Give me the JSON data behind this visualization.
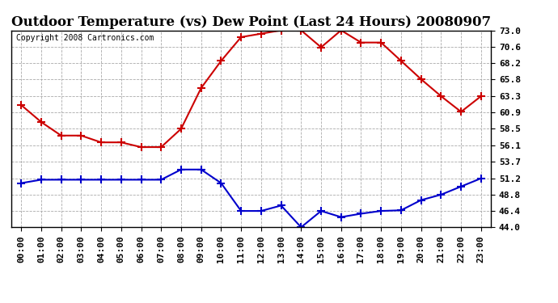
{
  "title": "Outdoor Temperature (vs) Dew Point (Last 24 Hours) 20080907",
  "copyright": "Copyright 2008 Cartronics.com",
  "hours": [
    "00:00",
    "01:00",
    "02:00",
    "03:00",
    "04:00",
    "05:00",
    "06:00",
    "07:00",
    "08:00",
    "09:00",
    "10:00",
    "11:00",
    "12:00",
    "13:00",
    "14:00",
    "15:00",
    "16:00",
    "17:00",
    "18:00",
    "19:00",
    "20:00",
    "21:00",
    "22:00",
    "23:00"
  ],
  "temp": [
    62.0,
    59.5,
    57.5,
    57.5,
    56.5,
    56.5,
    55.8,
    55.8,
    58.5,
    64.5,
    68.5,
    72.0,
    72.5,
    73.0,
    73.0,
    70.5,
    73.0,
    71.2,
    71.2,
    68.5,
    65.8,
    63.3,
    61.0,
    63.3
  ],
  "dew": [
    50.5,
    51.0,
    51.0,
    51.0,
    51.0,
    51.0,
    51.0,
    51.0,
    52.5,
    52.5,
    50.5,
    46.4,
    46.4,
    47.2,
    44.0,
    46.4,
    45.5,
    46.0,
    46.4,
    46.5,
    48.0,
    48.8,
    50.0,
    51.2
  ],
  "ylim": [
    44.0,
    73.0
  ],
  "yticks": [
    44.0,
    46.4,
    48.8,
    51.2,
    53.7,
    56.1,
    58.5,
    60.9,
    63.3,
    65.8,
    68.2,
    70.6,
    73.0
  ],
  "temp_color": "#cc0000",
  "dew_color": "#0000cc",
  "bg_color": "#ffffff",
  "plot_bg": "#ffffff",
  "grid_color": "#aaaaaa",
  "marker": "+",
  "markersize": 7,
  "markeredgewidth": 1.5,
  "linewidth": 1.5,
  "title_fontsize": 12,
  "tick_fontsize": 8,
  "copyright_fontsize": 7
}
